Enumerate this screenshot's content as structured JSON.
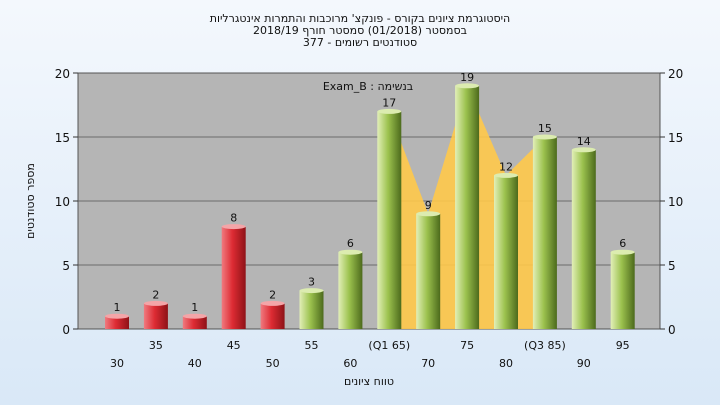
{
  "titles": [
    "היסטוגרמת ציונים בקורס - פונקצ' מרוכבות והתמרות אינטגרליות",
    "בסמסטר  (01/2018)  סמסטר חורף 2018/19",
    "סטודנטים רשומים - 377"
  ],
  "chart_data": {
    "type": "bar",
    "ylabel": "מספר סטודנטים",
    "xlabel": "טווח ציונים",
    "ylim": [
      0,
      20
    ],
    "yticks": [
      0,
      5,
      10,
      15,
      20
    ],
    "grid": true,
    "annotation": "בנשימה : Exam_B",
    "categories": [
      "30",
      "35",
      "40",
      "45",
      "50",
      "55",
      "60",
      "(Q1 65)",
      "70",
      "75",
      "80",
      "(Q3 85)",
      "90",
      "95"
    ],
    "values": [
      1,
      2,
      1,
      8,
      2,
      3,
      6,
      17,
      9,
      19,
      12,
      15,
      14,
      6
    ],
    "bar_colors": [
      "red",
      "red",
      "red",
      "red",
      "red",
      "green",
      "green",
      "green",
      "green",
      "green",
      "green",
      "green",
      "green",
      "green"
    ],
    "band_from_category": "(Q1 65)",
    "band_to_category": "(Q3 85)",
    "colors": {
      "red_bar": "#dd2b33",
      "green_bar": "#9cc24e",
      "band": "#ffc94a",
      "plot_bg": "#b5b5b5"
    }
  }
}
